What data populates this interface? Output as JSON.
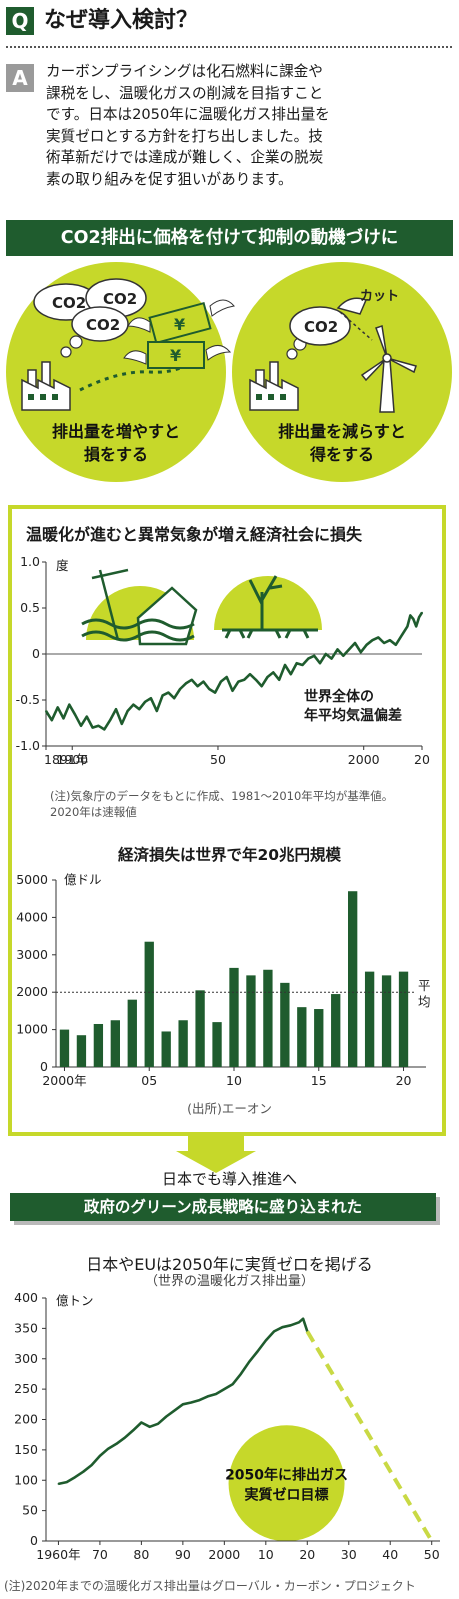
{
  "qa": {
    "q_mark": "Q",
    "question": "なぜ導入検討？",
    "a_mark": "A",
    "answer_lines": [
      "カーボンプライシングは化石燃料に課金や",
      "課税をし、温暖化ガスの削減を目指すこと",
      "です。日本は2050年に温暖化ガス排出量を",
      "実質ゼロとする方針を打ち出しました。技",
      "術革新だけでは達成が難しく、企業の脱炭",
      "素の取り組みを促す狙いがあります。"
    ]
  },
  "banner": "CO2排出に価格を付けて抑制の動機づけに",
  "illustration": {
    "left_cloud_labels": [
      "CO2",
      "CO2",
      "CO2"
    ],
    "yen_sign": "¥",
    "left_caption": [
      "排出量を増やすと",
      "損をする"
    ],
    "right_cloud_label": "CO2",
    "cut_label": "カット",
    "right_caption": [
      "排出量を減らすと",
      "得をする"
    ],
    "colors": {
      "lime": "#c6d82a",
      "dark_green": "#1f5c2e"
    }
  },
  "temp_chart_note": [
    "(注)気象庁のデータをもとに作成、1981〜2010年平均が基準値。",
    "2020年は速報値"
  ],
  "loss_chart_source": "(出所)エーオン",
  "bridge": {
    "text": "日本でも導入推進へ",
    "banner": "政府のグリーン成長戦略に盛り込まれた"
  },
  "ghg_chart_note": "(注)2020年までの温暖化ガス排出量はグローバル・カーボン・プロジェクト",
  "chart_data": [
    {
      "type": "line",
      "title": "温暖化が進むと異常気象が増え経済社会に損失",
      "ylabel": "度",
      "series_label": [
        "世界全体の",
        "年平均気温偏差"
      ],
      "ylim": [
        -1.0,
        1.0
      ],
      "yticks": [
        "1.0",
        "0.5",
        "0",
        "-0.5",
        "-1.0"
      ],
      "xticks": [
        "1891年",
        "1900",
        "50",
        "2000",
        "20"
      ],
      "xlim": [
        1891,
        2020
      ],
      "x": [
        1891,
        1893,
        1895,
        1897,
        1899,
        1901,
        1903,
        1905,
        1907,
        1909,
        1911,
        1913,
        1915,
        1917,
        1919,
        1921,
        1923,
        1925,
        1927,
        1929,
        1931,
        1933,
        1935,
        1937,
        1939,
        1941,
        1943,
        1945,
        1947,
        1949,
        1951,
        1953,
        1955,
        1957,
        1959,
        1961,
        1963,
        1965,
        1967,
        1969,
        1971,
        1973,
        1975,
        1977,
        1979,
        1981,
        1983,
        1985,
        1987,
        1989,
        1991,
        1993,
        1995,
        1997,
        1999,
        2001,
        2003,
        2005,
        2007,
        2009,
        2011,
        2013,
        2015,
        2016,
        2017,
        2018,
        2019,
        2020
      ],
      "values": [
        -0.62,
        -0.72,
        -0.58,
        -0.7,
        -0.55,
        -0.66,
        -0.78,
        -0.68,
        -0.8,
        -0.78,
        -0.82,
        -0.72,
        -0.6,
        -0.76,
        -0.62,
        -0.55,
        -0.6,
        -0.52,
        -0.48,
        -0.62,
        -0.45,
        -0.42,
        -0.48,
        -0.38,
        -0.32,
        -0.28,
        -0.35,
        -0.3,
        -0.38,
        -0.42,
        -0.3,
        -0.25,
        -0.4,
        -0.3,
        -0.28,
        -0.22,
        -0.28,
        -0.35,
        -0.25,
        -0.2,
        -0.28,
        -0.12,
        -0.22,
        -0.1,
        -0.12,
        -0.05,
        -0.02,
        -0.1,
        0.0,
        -0.05,
        0.05,
        -0.02,
        0.05,
        0.12,
        0.02,
        0.1,
        0.15,
        0.18,
        0.12,
        0.15,
        0.1,
        0.2,
        0.3,
        0.42,
        0.38,
        0.3,
        0.4,
        0.45
      ],
      "zero_line": true
    },
    {
      "type": "bar",
      "title": "経済損失は世界で年20兆円規模",
      "ylabel": "億ドル",
      "ylim": [
        0,
        5000
      ],
      "yticks": [
        "5000",
        "4000",
        "3000",
        "2000",
        "1000",
        "0"
      ],
      "categories": [
        2000,
        2001,
        2002,
        2003,
        2004,
        2005,
        2006,
        2007,
        2008,
        2009,
        2010,
        2011,
        2012,
        2013,
        2014,
        2015,
        2016,
        2017,
        2018,
        2019,
        2020
      ],
      "xticks": [
        "2000年",
        "05",
        "10",
        "15",
        "20"
      ],
      "values": [
        1000,
        850,
        1150,
        1250,
        1800,
        3350,
        950,
        1250,
        2050,
        1200,
        2650,
        2450,
        2600,
        2250,
        1600,
        1550,
        1950,
        4700,
        2550,
        2450,
        2550
      ],
      "average": 2000,
      "average_label": [
        "平",
        "均"
      ]
    },
    {
      "type": "line",
      "title": "日本やEUは2050年に実質ゼロを掲げる",
      "subtitle": "（世界の温暖化ガス排出量）",
      "ylabel": "億トン",
      "ylim": [
        0,
        400
      ],
      "yticks": [
        "400",
        "350",
        "300",
        "250",
        "200",
        "150",
        "100",
        "50",
        "0"
      ],
      "xticks": [
        "1960年",
        "70",
        "80",
        "90",
        "2000",
        "10",
        "20",
        "30",
        "40",
        "50"
      ],
      "xlim": [
        1957,
        2052
      ],
      "x": [
        1960,
        1962,
        1964,
        1966,
        1968,
        1970,
        1972,
        1974,
        1976,
        1978,
        1980,
        1982,
        1984,
        1986,
        1988,
        1990,
        1992,
        1994,
        1996,
        1998,
        2000,
        2002,
        2004,
        2006,
        2008,
        2010,
        2012,
        2014,
        2016,
        2018,
        2019,
        2020
      ],
      "values": [
        94,
        97,
        105,
        114,
        125,
        140,
        152,
        160,
        170,
        182,
        195,
        188,
        193,
        205,
        215,
        225,
        228,
        232,
        238,
        242,
        250,
        258,
        275,
        295,
        312,
        330,
        345,
        352,
        355,
        360,
        366,
        345
      ],
      "projection": {
        "x": [
          2020,
          2050
        ],
        "values": [
          345,
          0
        ]
      },
      "annotation": [
        "2050年に排出ガス",
        "実質ゼロ目標"
      ]
    }
  ]
}
